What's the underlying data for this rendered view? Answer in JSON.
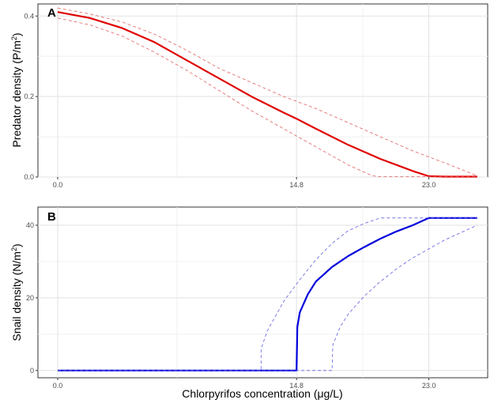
{
  "chart_data": [
    {
      "type": "line",
      "panel_label": "A",
      "ylabel_main": "Predator density (P/m",
      "ylabel_sup": "2",
      "ylabel_close": ")",
      "xlabel": "",
      "x_ticks": [
        "0.0",
        "14.8",
        "23.0"
      ],
      "y_ticks": [
        "0.0",
        "0.2",
        "0.4"
      ],
      "xlim": [
        0,
        26.4
      ],
      "ylim": [
        0,
        0.43
      ],
      "grid": true,
      "colors": {
        "mean": "#e00000",
        "ci": "#e06060"
      },
      "series": [
        {
          "role": "mean",
          "style": "solid",
          "x": [
            0,
            2,
            4,
            6,
            8,
            10,
            12,
            14,
            14.8,
            16,
            18,
            20,
            22,
            23,
            24,
            25,
            26
          ],
          "y": [
            0.41,
            0.395,
            0.37,
            0.335,
            0.29,
            0.245,
            0.2,
            0.16,
            0.145,
            0.12,
            0.08,
            0.045,
            0.015,
            0.002,
            0.001,
            0.001,
            0.001
          ]
        },
        {
          "role": "ci-upper",
          "style": "dashed",
          "x": [
            0,
            2,
            4,
            6,
            8,
            10,
            12,
            14,
            16,
            18,
            20,
            22,
            24,
            26
          ],
          "y": [
            0.42,
            0.405,
            0.385,
            0.355,
            0.315,
            0.27,
            0.235,
            0.2,
            0.17,
            0.135,
            0.1,
            0.065,
            0.035,
            0.003
          ]
        },
        {
          "role": "ci-lower",
          "style": "dashed",
          "x": [
            0,
            2,
            4,
            6,
            8,
            10,
            12,
            14,
            16,
            18,
            19.5,
            20,
            22,
            24,
            26
          ],
          "y": [
            0.395,
            0.378,
            0.35,
            0.31,
            0.265,
            0.215,
            0.165,
            0.12,
            0.075,
            0.03,
            0.003,
            0.001,
            0.001,
            0.001,
            0.001
          ]
        }
      ]
    },
    {
      "type": "line",
      "panel_label": "B",
      "ylabel_main": "Snail density (N/m",
      "ylabel_sup": "2",
      "ylabel_close": ")",
      "xlabel": "Chlorpyrifos concentration (μg/L)",
      "x_ticks": [
        "0.0",
        "14.8",
        "23.0"
      ],
      "y_ticks": [
        "0",
        "20",
        "40"
      ],
      "xlim": [
        0,
        26.4
      ],
      "ylim": [
        -2,
        45
      ],
      "grid": true,
      "colors": {
        "mean": "#0000dd",
        "ci": "#6060e0"
      },
      "series": [
        {
          "role": "mean",
          "style": "solid",
          "x": [
            0,
            14.8,
            14.85,
            15,
            15.5,
            16,
            17,
            18,
            19,
            20,
            21,
            22,
            23,
            24,
            25,
            26
          ],
          "y": [
            0,
            0,
            12,
            16,
            21,
            24.5,
            28.5,
            31.5,
            34,
            36.3,
            38.3,
            40,
            42,
            42,
            42,
            42
          ]
        },
        {
          "role": "ci-upper",
          "style": "dashed",
          "x": [
            0,
            12.6,
            12.6,
            13,
            14,
            15,
            16,
            17,
            18,
            19,
            20,
            21,
            22,
            23,
            24,
            25,
            26
          ],
          "y": [
            0,
            0,
            6,
            11,
            19,
            25,
            30.5,
            35,
            38.5,
            40.5,
            42,
            42,
            42,
            42,
            42,
            42,
            42
          ]
        },
        {
          "role": "ci-lower",
          "style": "dashed",
          "x": [
            0,
            17,
            17.05,
            17.5,
            18,
            19,
            20,
            21,
            22,
            23,
            24,
            25,
            26
          ],
          "y": [
            0,
            0,
            7,
            12,
            15.5,
            20.5,
            24.5,
            28,
            31,
            33.5,
            36,
            38,
            40
          ]
        }
      ]
    }
  ]
}
